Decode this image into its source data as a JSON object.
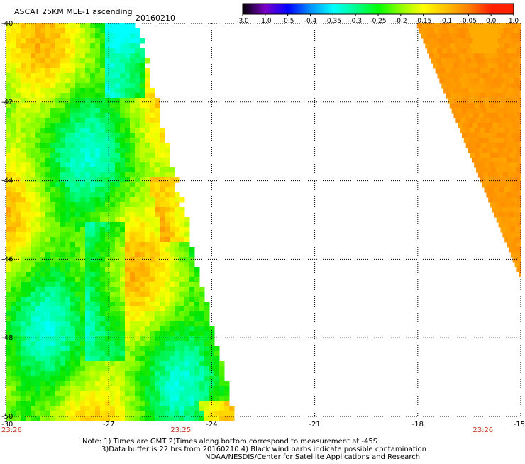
{
  "chart_data": {
    "type": "heatmap",
    "title": "ASCAT 25KM MLE-1 ascending",
    "date": "20160210",
    "variable": "MLE-1",
    "colorbar": {
      "tick_labels": [
        "-3.0",
        "-1.0",
        "-0.5",
        "-0.4",
        "-0.35",
        "-0.3",
        "-0.25",
        "-0.2",
        "-0.15",
        "-0.1",
        "-0.05",
        "0.0",
        "1.0"
      ],
      "colors": [
        "#000000",
        "#7a00c8",
        "#0000ff",
        "#0090ff",
        "#00ffff",
        "#00ff90",
        "#00ff00",
        "#90ff00",
        "#ffff00",
        "#ffc000",
        "#ff8000",
        "#ff2000"
      ]
    },
    "x_axis": {
      "lim": [
        -30,
        -15
      ],
      "tick_labels": [
        "-30",
        "-27",
        "-24",
        "-21",
        "-18",
        "-15"
      ]
    },
    "y_axis": {
      "lim": [
        -50,
        -40
      ],
      "tick_labels": [
        "-40",
        "-42",
        "-44",
        "-46",
        "-48",
        "-50"
      ]
    },
    "grid": true,
    "swath_west": {
      "time": "23:25",
      "typical_value_range": [
        -0.3,
        0.0
      ],
      "max_value_near_edge": 0.0
    },
    "swath_east": {
      "time": "23:26",
      "typical_value_range": [
        -0.05,
        0.0
      ]
    },
    "bottom_time_labels": [
      {
        "lon": -30,
        "text": "23:26"
      },
      {
        "lon": -24.9,
        "text": "23:25"
      },
      {
        "lon": -16.1,
        "text": "23:26"
      }
    ],
    "time_label_color": "#c8321e"
  },
  "notes": [
    "Note: 1) Times are GMT 2)Times along bottom correspond to measurement at -45S",
    "3)Data buffer is 22 hrs from 20160210 4) Black wind barbs indicate possible contamination",
    "NOAA/NESDIS/Center for Satellite Applications and Research"
  ]
}
